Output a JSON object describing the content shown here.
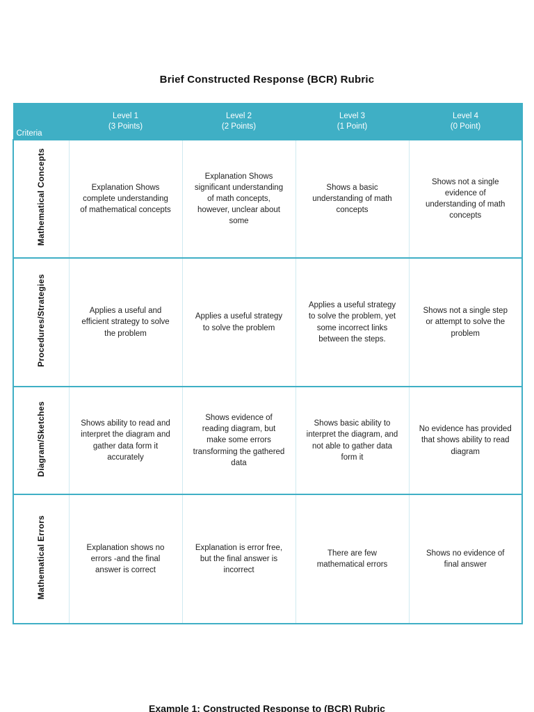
{
  "page": {
    "title": "Brief Constructed Response (BCR) Rubric",
    "footer_partial": "Example 1: Constructed Response to (BCR) Rubric"
  },
  "colors": {
    "header_bg": "#3fafc5",
    "row_border": "#3fafc5",
    "column_border": "#cfeaf0",
    "text": "#1a1a1a"
  },
  "table": {
    "criteria_header": "Criteria",
    "columns": [
      {
        "line1": "Level 1",
        "line2": "(3 Points)"
      },
      {
        "line1": "Level 2",
        "line2": "(2 Points)"
      },
      {
        "line1": "Level 3",
        "line2": "(1 Point)"
      },
      {
        "line1": "Level 4",
        "line2": "(0 Point)"
      }
    ],
    "rows": [
      {
        "label": "Mathematical Concepts",
        "cells": [
          "Explanation Shows complete understanding of mathematical concepts",
          "Explanation Shows significant understanding of math concepts, however, unclear about some",
          "Shows a basic understanding of math concepts",
          "Shows not a single evidence of understanding of math concepts"
        ]
      },
      {
        "label": "Procedures/Strategies",
        "cells": [
          "Applies a useful and efficient strategy to solve the problem",
          "Applies a useful strategy to solve the problem",
          "Applies a useful strategy to solve the problem, yet some incorrect links between the steps.",
          "Shows not a single step or attempt to solve the problem"
        ]
      },
      {
        "label": "Diagram/Sketches",
        "cells": [
          "Shows ability to read and interpret the diagram and gather data form it accurately",
          "Shows evidence of reading diagram, but make some errors transforming the gathered data",
          "Shows basic ability to interpret the diagram, and not able to gather data form it",
          "No evidence has provided that shows ability to read diagram"
        ]
      },
      {
        "label": "Mathematical Errors",
        "cells": [
          "Explanation shows no errors -and the final answer is correct",
          "Explanation is error free, but the final answer is incorrect",
          "There are few mathematical errors",
          "Shows no evidence of final answer"
        ]
      }
    ]
  }
}
